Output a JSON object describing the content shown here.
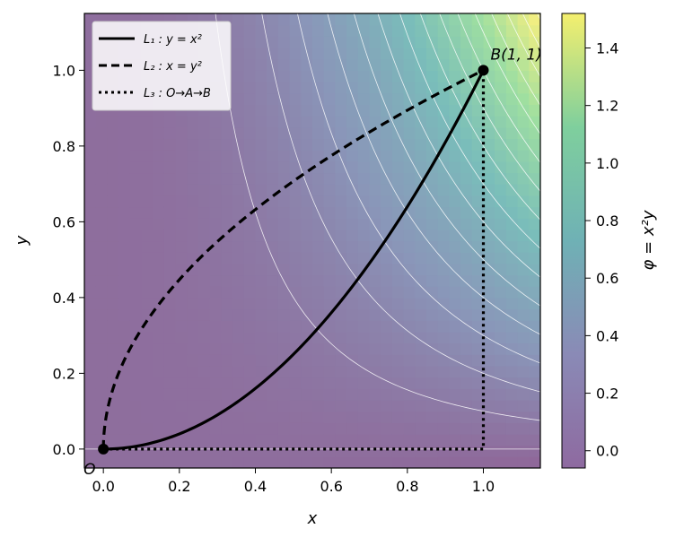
{
  "chart_data": {
    "type": "contour",
    "field": {
      "expression": "φ = x²y",
      "colormap": [
        "#440154",
        "#3b528b",
        "#21918c",
        "#5ec962",
        "#fde725"
      ],
      "alpha": 0.6,
      "contour_levels": [
        0,
        0.1,
        0.2,
        0.3,
        0.4,
        0.5,
        0.6,
        0.7,
        0.8,
        0.9,
        1.0,
        1.1,
        1.2,
        1.3,
        1.4,
        1.5
      ],
      "contour_color": "#ffffff"
    },
    "xlim": [
      -0.05,
      1.15
    ],
    "ylim": [
      -0.05,
      1.15
    ],
    "xlabel": "x",
    "ylabel": "y",
    "xticks": [
      "0.0",
      "0.2",
      "0.4",
      "0.6",
      "0.8",
      "1.0"
    ],
    "yticks": [
      "0.0",
      "0.2",
      "0.4",
      "0.6",
      "0.8",
      "1.0"
    ],
    "grid": false,
    "series": [
      {
        "name": "L₁ : y = x²",
        "style": "solid",
        "x": [
          0,
          0.1,
          0.2,
          0.3,
          0.4,
          0.5,
          0.6,
          0.7,
          0.8,
          0.9,
          1.0
        ],
        "y": [
          0,
          0.01,
          0.04,
          0.09,
          0.16,
          0.25,
          0.36,
          0.49,
          0.64,
          0.81,
          1.0
        ]
      },
      {
        "name": "L₂ : x = y²",
        "style": "dashed",
        "x": [
          0,
          0.01,
          0.04,
          0.09,
          0.16,
          0.25,
          0.36,
          0.49,
          0.64,
          0.81,
          1.0
        ],
        "y": [
          0,
          0.1,
          0.2,
          0.3,
          0.4,
          0.5,
          0.6,
          0.7,
          0.8,
          0.9,
          1.0
        ]
      },
      {
        "name": "L₃ : O→A→B",
        "style": "dotted",
        "x": [
          0,
          1,
          1
        ],
        "y": [
          0,
          0,
          1
        ]
      }
    ],
    "points": [
      {
        "label": "O",
        "x": 0,
        "y": 0
      },
      {
        "label": "B(1, 1)",
        "x": 1,
        "y": 1
      }
    ],
    "legend": "top-left",
    "colorbar": {
      "label": "φ = x²y",
      "range": [
        -0.06,
        1.52
      ],
      "ticks": [
        "0.0",
        "0.2",
        "0.4",
        "0.6",
        "0.8",
        "1.0",
        "1.2",
        "1.4"
      ]
    }
  }
}
